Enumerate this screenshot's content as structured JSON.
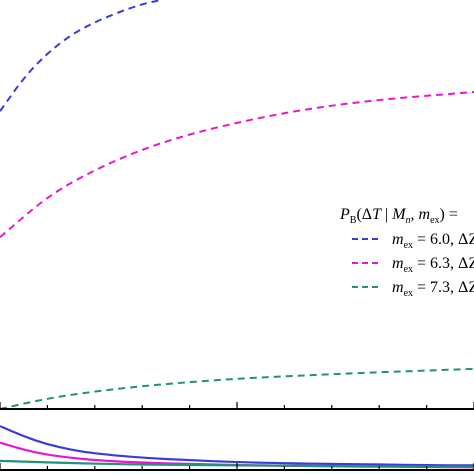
{
  "colors": {
    "blue": "#3b3bd9",
    "magenta": "#e619cf",
    "green": "#22917a",
    "axis": "#000000",
    "background": "#ffffff"
  },
  "legend": {
    "title_parts": {
      "p": "P",
      "p_sub": "B",
      "open": "(Δ",
      "t": "T",
      "bar": " | ",
      "m": "M",
      "m_sub": "n",
      "comma": ", ",
      "mex": "m",
      "mex_sub": "ex",
      "close": ") ="
    },
    "entries": [
      {
        "m": "m",
        "m_sub": "ex",
        "rest": " = 6.0, ΔZ",
        "color_key": "blue"
      },
      {
        "m": "m",
        "m_sub": "ex",
        "rest": " = 6.3, ΔZ",
        "color_key": "magenta"
      },
      {
        "m": "m",
        "m_sub": "ex",
        "rest": " = 7.3, ΔZ",
        "color_key": "green"
      }
    ],
    "placement": "right (clipped)"
  },
  "chart_data": {
    "type": "line",
    "title": "",
    "xlabel": "",
    "ylabel": "",
    "xlim": [
      0,
      1
    ],
    "upper_panel": {
      "ylim": [
        0,
        1
      ],
      "series": [
        {
          "name": "m_ex = 6.0",
          "style": "dashed",
          "color_key": "blue",
          "x": [
            0.0,
            0.05,
            0.1,
            0.15,
            0.2,
            0.25,
            0.3,
            0.34
          ],
          "y": [
            0.728,
            0.81,
            0.87,
            0.915,
            0.946,
            0.97,
            0.99,
            1.0
          ]
        },
        {
          "name": "m_ex = 6.3",
          "style": "dashed",
          "color_key": "magenta",
          "x": [
            0.0,
            0.1,
            0.2,
            0.3,
            0.4,
            0.5,
            0.6,
            0.7,
            0.8,
            0.9,
            1.0
          ],
          "y": [
            0.42,
            0.52,
            0.585,
            0.635,
            0.672,
            0.7,
            0.724,
            0.742,
            0.756,
            0.766,
            0.775
          ]
        },
        {
          "name": "m_ex = 7.3",
          "style": "dashed",
          "color_key": "green",
          "x": [
            0.0,
            0.1,
            0.2,
            0.3,
            0.4,
            0.5,
            0.6,
            0.7,
            0.8,
            0.9,
            1.0
          ],
          "y": [
            0.0,
            0.026,
            0.043,
            0.056,
            0.066,
            0.074,
            0.08,
            0.085,
            0.09,
            0.094,
            0.098
          ]
        }
      ]
    },
    "lower_panel": {
      "ylim": [
        0,
        1
      ],
      "series": [
        {
          "name": "blue solid",
          "style": "solid",
          "color_key": "blue",
          "x": [
            0.0,
            0.05,
            0.1,
            0.15,
            0.2,
            0.3,
            0.4,
            0.5,
            0.6,
            0.7,
            0.8,
            0.9,
            1.0
          ],
          "y": [
            0.72,
            0.55,
            0.42,
            0.33,
            0.27,
            0.2,
            0.16,
            0.13,
            0.11,
            0.1,
            0.09,
            0.08,
            0.075
          ]
        },
        {
          "name": "magenta solid",
          "style": "solid",
          "color_key": "magenta",
          "x": [
            0.0,
            0.05,
            0.1,
            0.15,
            0.2,
            0.3,
            0.4,
            0.5,
            0.6,
            0.7,
            0.8,
            0.9,
            1.0
          ],
          "y": [
            0.45,
            0.33,
            0.25,
            0.2,
            0.16,
            0.12,
            0.1,
            0.08,
            0.07,
            0.06,
            0.055,
            0.05,
            0.045
          ]
        },
        {
          "name": "green solid",
          "style": "solid",
          "color_key": "green",
          "x": [
            0.0,
            0.2,
            0.4,
            0.6,
            0.8,
            1.0
          ],
          "y": [
            0.15,
            0.1,
            0.08,
            0.07,
            0.06,
            0.05
          ]
        }
      ]
    }
  }
}
